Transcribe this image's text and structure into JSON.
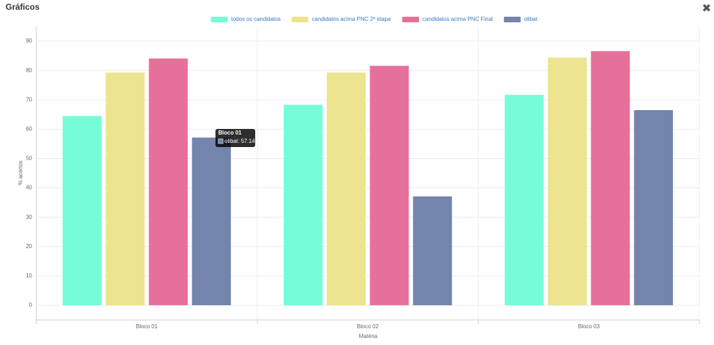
{
  "header": {
    "title": "Gráficos"
  },
  "chart_data": {
    "type": "bar",
    "x_label": "Matéria",
    "y_label": "% acertos",
    "categories": [
      "Bloco 01",
      "Bloco 02",
      "Bloco 03"
    ],
    "series": [
      {
        "name": "todos os candidatos",
        "color": "#76fcd8",
        "values": [
          64.5,
          68.3,
          71.7
        ]
      },
      {
        "name": "candidatos acima PNC 2ª etapa",
        "color": "#ece48f",
        "values": [
          79.3,
          79.3,
          84.4
        ]
      },
      {
        "name": "candidatos acima PNC Final",
        "color": "#e5719a",
        "values": [
          84.1,
          81.6,
          86.6
        ]
      },
      {
        "name": "olibat",
        "color": "#7385ad",
        "values": [
          57.14,
          37.1,
          66.5
        ]
      }
    ],
    "ylim": [
      -5,
      95
    ],
    "yticks": [
      0,
      10,
      20,
      30,
      40,
      50,
      60,
      70,
      80,
      90
    ],
    "grid": true,
    "legend": "top",
    "tooltip": {
      "title": "Bloco 01",
      "text": "olibat: 57.14"
    }
  }
}
